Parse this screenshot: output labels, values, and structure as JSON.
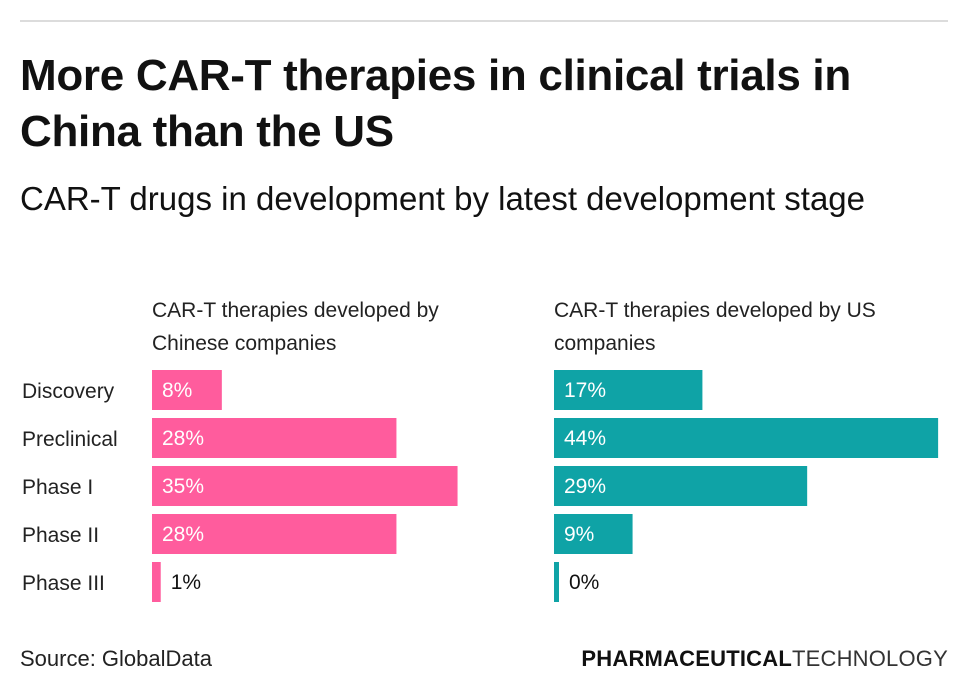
{
  "title": "More CAR-T therapies in clinical trials in China than the US",
  "subtitle": "CAR-T drugs in development by latest development stage",
  "footer": {
    "source": "Source: GlobalData",
    "brand_bold": "PHARMACEUTICAL",
    "brand_light": "TECHNOLOGY"
  },
  "colors": {
    "china": "#ff5c9d",
    "us": "#0fa3a6"
  },
  "chart_data": {
    "type": "bar",
    "orientation": "horizontal",
    "title": "More CAR-T therapies in clinical trials in China than the US",
    "subtitle": "CAR-T drugs in development by latest development stage",
    "categories": [
      "Discovery",
      "Preclinical",
      "Phase I",
      "Phase II",
      "Phase III"
    ],
    "unit": "%",
    "xlim": [
      0,
      45
    ],
    "grid": false,
    "legend": "none",
    "panels": [
      {
        "name": "CAR-T therapies developed by Chinese companies",
        "values": [
          8,
          28,
          35,
          28,
          1
        ],
        "labels": [
          "8%",
          "28%",
          "35%",
          "28%",
          "1%"
        ],
        "color": "#ff5c9d"
      },
      {
        "name": "CAR-T therapies developed by US companies",
        "values": [
          17,
          44,
          29,
          9,
          0
        ],
        "labels": [
          "17%",
          "44%",
          "29%",
          "9%",
          "0%"
        ],
        "color": "#0fa3a6"
      }
    ],
    "source": "Source: GlobalData"
  }
}
